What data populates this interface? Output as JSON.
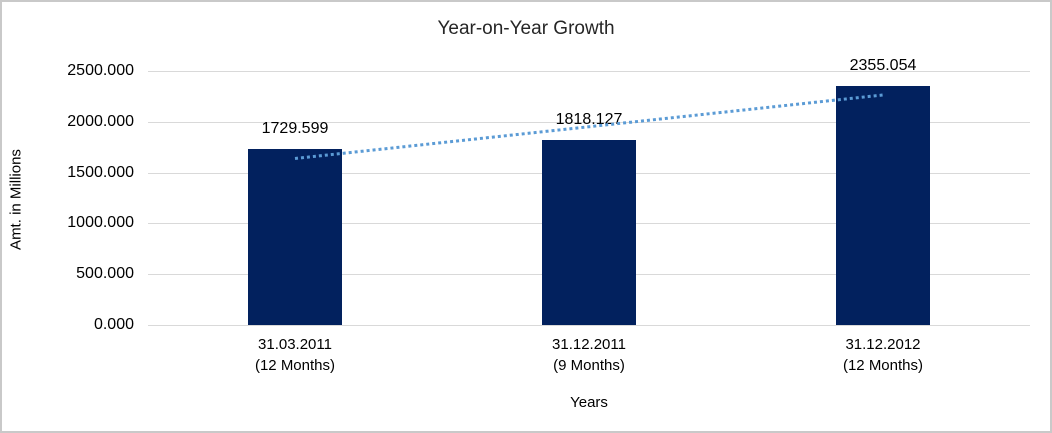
{
  "chart_data": {
    "type": "bar",
    "title": "Year-on-Year Growth",
    "xlabel": "Years",
    "ylabel": "Amt. in Millions",
    "categories": [
      {
        "line1": "31.03.2011",
        "line2": "(12 Months)"
      },
      {
        "line1": "31.12.2011",
        "line2": "(9 Months)"
      },
      {
        "line1": "31.12.2012",
        "line2": "(12 Months)"
      }
    ],
    "values": [
      1729.599,
      1818.127,
      2355.054
    ],
    "data_labels": [
      "1729.599",
      "1818.127",
      "2355.054"
    ],
    "y_ticks": [
      "2500.000",
      "2000.000",
      "1500.000",
      "1000.000",
      "500.000",
      "0.000"
    ],
    "ylim": [
      0,
      2500
    ],
    "y_tick_step": 500,
    "grid": true,
    "legend": "none",
    "bar_color": "#02215e",
    "trendline": {
      "type": "linear",
      "style": "dotted",
      "color": "#5b9bd5"
    },
    "gridline_color": "#d9d9d9",
    "text_color": "#000000"
  }
}
